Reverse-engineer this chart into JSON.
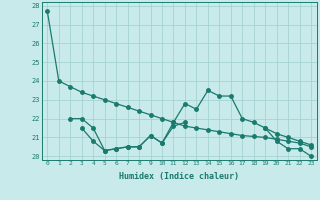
{
  "xlabel": "Humidex (Indice chaleur)",
  "bg_color": "#c8eaea",
  "grid_color": "#9ecece",
  "line_color": "#1a7a6e",
  "xlim": [
    -0.5,
    23.5
  ],
  "ylim": [
    19.8,
    28.2
  ],
  "yticks": [
    20,
    21,
    22,
    23,
    24,
    25,
    26,
    27,
    28
  ],
  "xticks": [
    0,
    1,
    2,
    3,
    4,
    5,
    6,
    7,
    8,
    9,
    10,
    11,
    12,
    13,
    14,
    15,
    16,
    17,
    18,
    19,
    20,
    21,
    22,
    23
  ],
  "series1_x": [
    0,
    1,
    2,
    3,
    4,
    5,
    6,
    7,
    8,
    9,
    10,
    11,
    12,
    13,
    14,
    15,
    16,
    17,
    18,
    19,
    20,
    21,
    22,
    23
  ],
  "series1_y": [
    27.7,
    24.0,
    23.7,
    23.4,
    23.2,
    23.0,
    22.8,
    22.6,
    22.4,
    22.2,
    22.0,
    21.8,
    21.6,
    21.5,
    21.4,
    21.3,
    21.2,
    21.1,
    21.05,
    21.0,
    20.9,
    20.8,
    20.7,
    20.5
  ],
  "series2_x": [
    2,
    3,
    4,
    5,
    6,
    7,
    8,
    9,
    10,
    11,
    12,
    13,
    14,
    15,
    16,
    17,
    18,
    19,
    20,
    21,
    22,
    23
  ],
  "series2_y": [
    22.0,
    22.0,
    21.5,
    20.3,
    20.4,
    20.5,
    20.5,
    21.1,
    20.7,
    21.8,
    22.8,
    22.5,
    23.5,
    23.2,
    23.2,
    22.0,
    21.8,
    21.5,
    21.2,
    21.0,
    20.8,
    20.6
  ],
  "series3_x": [
    3,
    4,
    5,
    6,
    7,
    8,
    9,
    10,
    11,
    12
  ],
  "series3_y": [
    21.5,
    20.8,
    20.3,
    20.4,
    20.5,
    20.5,
    21.1,
    20.7,
    21.6,
    21.8
  ],
  "series4_x": [
    19,
    20,
    21,
    22,
    23
  ],
  "series4_y": [
    21.5,
    20.8,
    20.4,
    20.4,
    20.0
  ]
}
